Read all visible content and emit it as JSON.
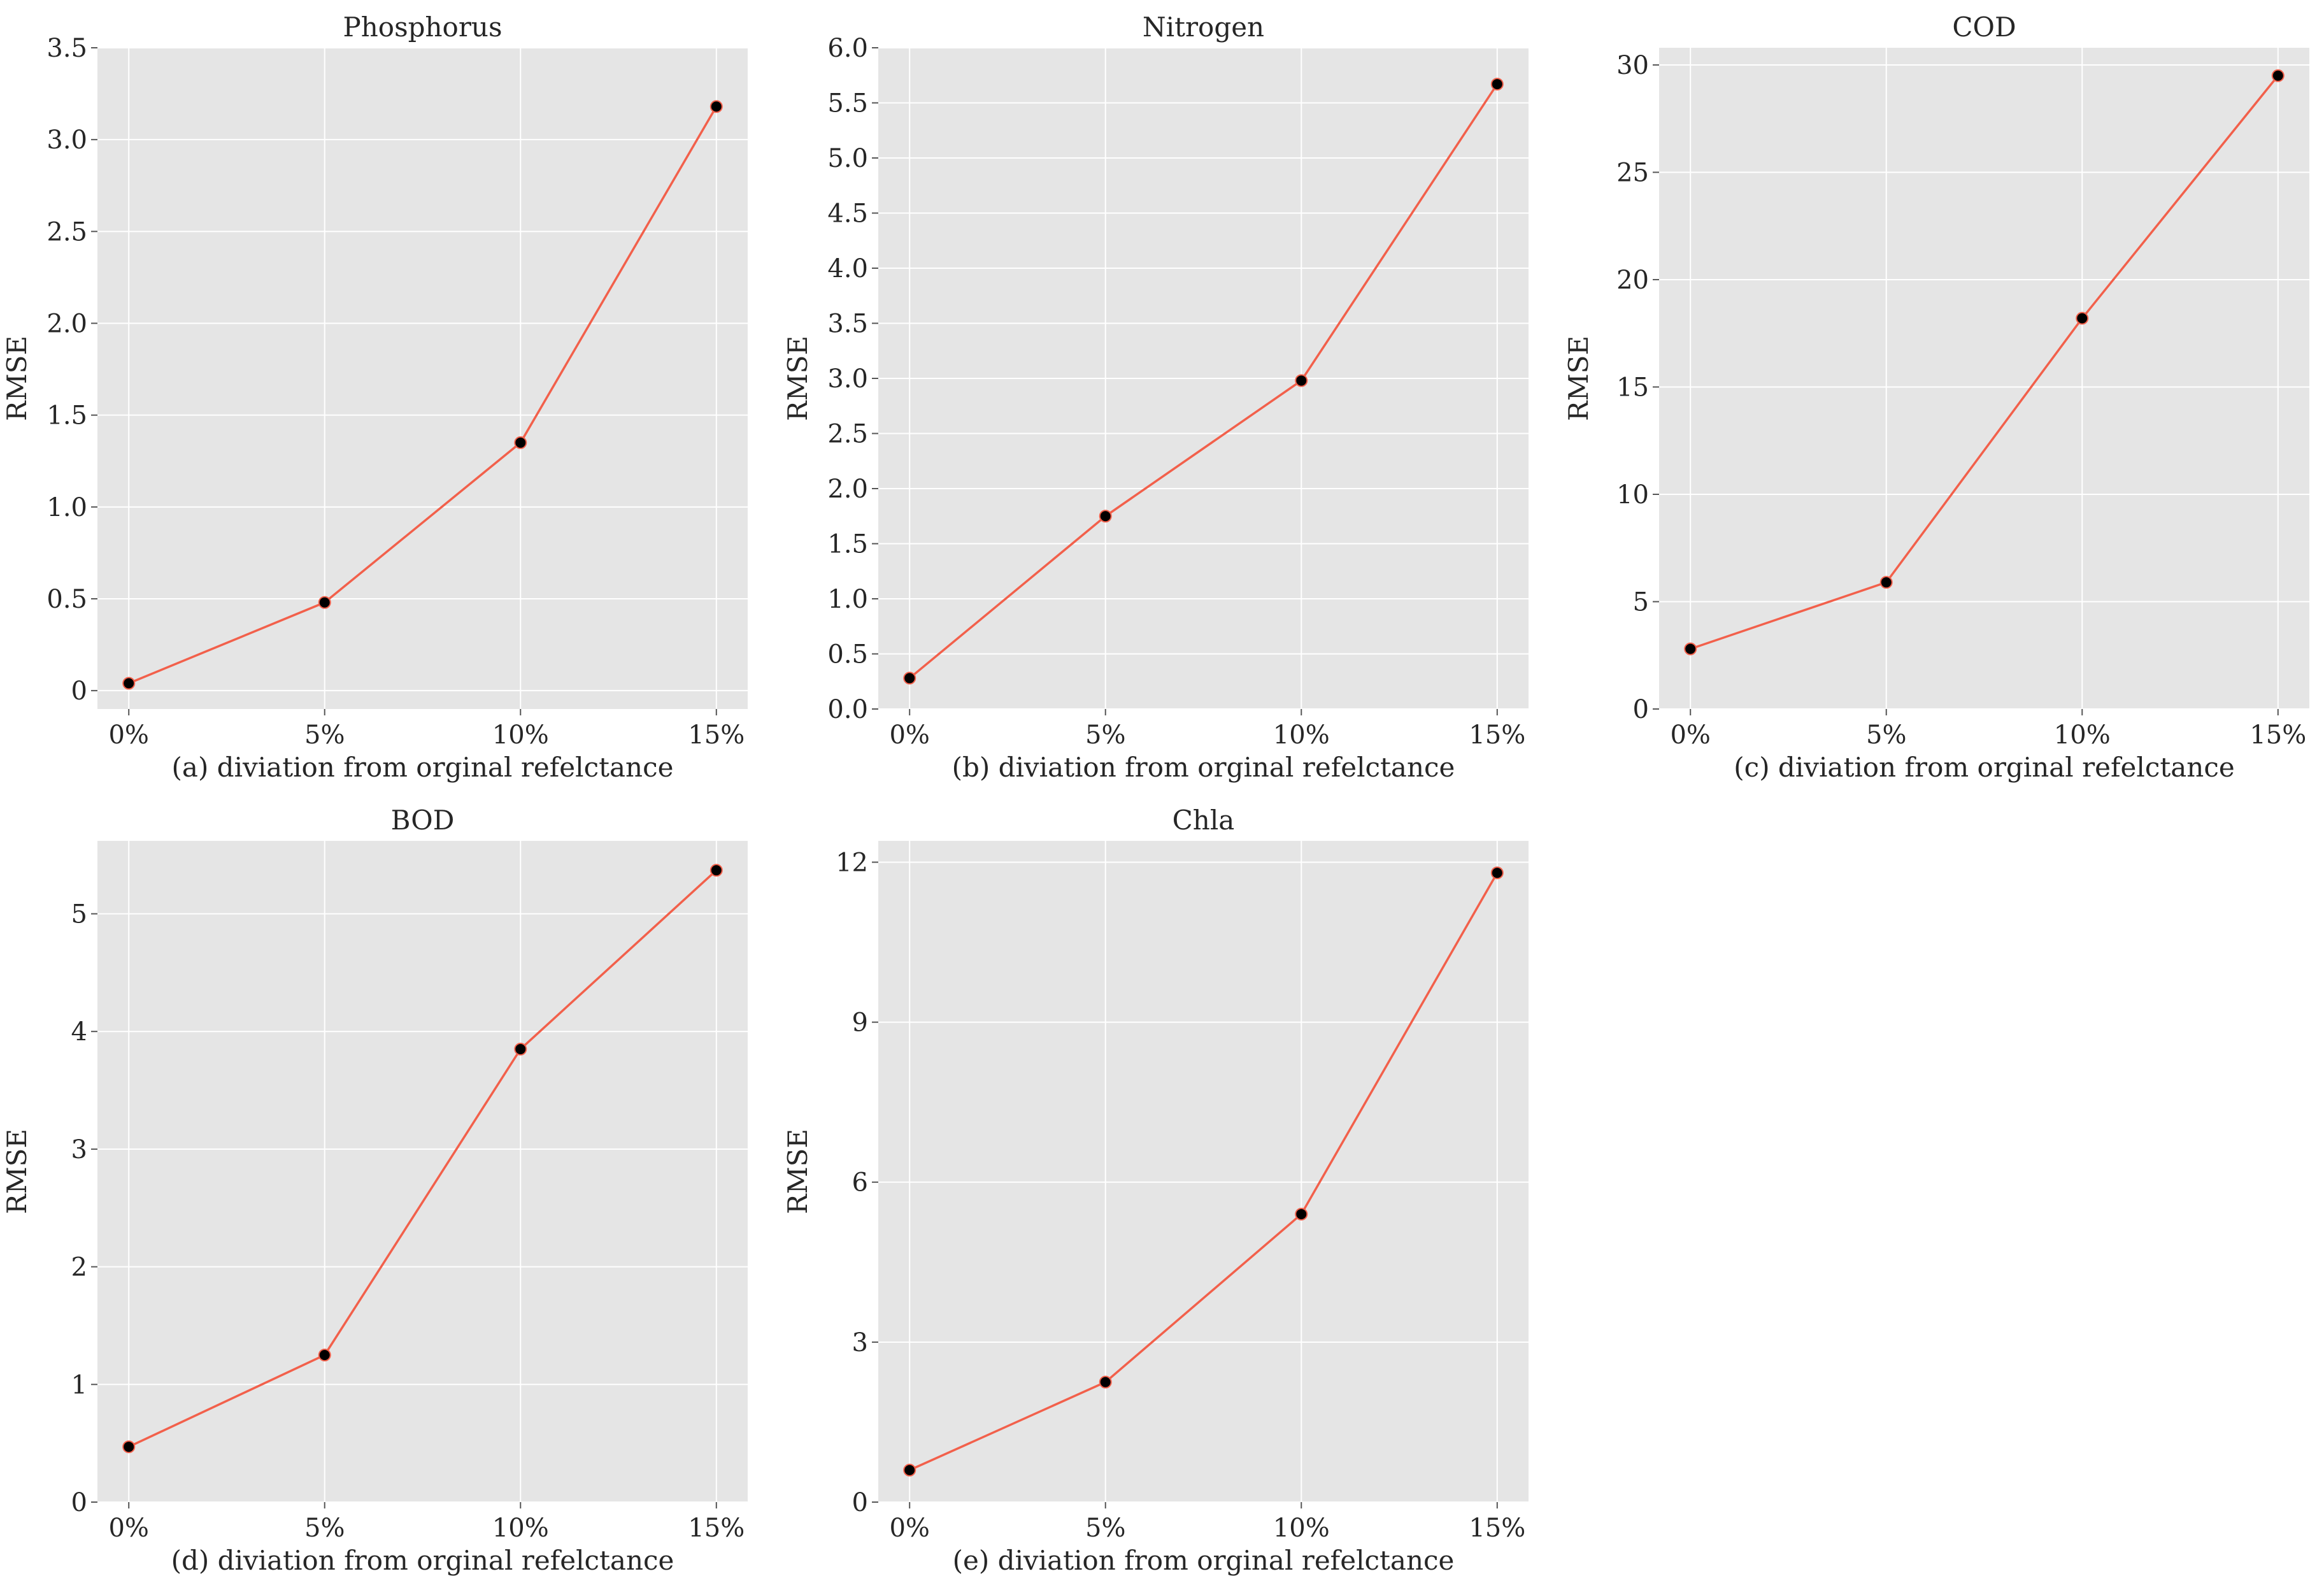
{
  "figure": {
    "colors": {
      "background": "#ffffff",
      "panel": "#e5e5e5",
      "grid": "#ffffff",
      "line": "#f2604b",
      "marker": "#000000",
      "text": "#262626"
    }
  },
  "chart_data": [
    {
      "type": "line",
      "title": "Phosphorus",
      "xlabel": "(a) diviation from orginal refelctance",
      "ylabel": "RMSE",
      "categories": [
        "0%",
        "5%",
        "10%",
        "15%"
      ],
      "x": [
        0,
        5,
        10,
        15
      ],
      "values": [
        0.04,
        0.48,
        1.35,
        3.18
      ],
      "xlim": [
        -0.8,
        15.8
      ],
      "ylim": [
        -0.1,
        3.5
      ],
      "yticks": [
        0,
        0.5,
        1.0,
        1.5,
        2.0,
        2.5,
        3.0,
        3.5
      ],
      "ytick_labels": [
        "0",
        "0.5",
        "1.0",
        "1.5",
        "2.0",
        "2.5",
        "3.0",
        "3.5"
      ],
      "grid": true
    },
    {
      "type": "line",
      "title": "Nitrogen",
      "xlabel": "(b) diviation from orginal refelctance",
      "ylabel": "RMSE",
      "categories": [
        "0%",
        "5%",
        "10%",
        "15%"
      ],
      "x": [
        0,
        5,
        10,
        15
      ],
      "values": [
        0.28,
        1.75,
        2.98,
        5.67
      ],
      "xlim": [
        -0.8,
        15.8
      ],
      "ylim": [
        0.0,
        6.0
      ],
      "yticks": [
        0.0,
        0.5,
        1.0,
        1.5,
        2.0,
        2.5,
        3.0,
        3.5,
        4.0,
        4.5,
        5.0,
        5.5,
        6.0
      ],
      "ytick_labels": [
        "0.0",
        "0.5",
        "1.0",
        "1.5",
        "2.0",
        "2.5",
        "3.0",
        "3.5",
        "4.0",
        "4.5",
        "5.0",
        "5.5",
        "6.0"
      ],
      "grid": true
    },
    {
      "type": "line",
      "title": "COD",
      "xlabel": "(c) diviation from orginal refelctance",
      "ylabel": "RMSE",
      "categories": [
        "0%",
        "5%",
        "10%",
        "15%"
      ],
      "x": [
        0,
        5,
        10,
        15
      ],
      "values": [
        2.8,
        5.9,
        18.2,
        29.5
      ],
      "xlim": [
        -0.8,
        15.8
      ],
      "ylim": [
        0,
        30.8
      ],
      "yticks": [
        0,
        5,
        10,
        15,
        20,
        25,
        30
      ],
      "ytick_labels": [
        "0",
        "5",
        "10",
        "15",
        "20",
        "25",
        "30"
      ],
      "grid": true
    },
    {
      "type": "line",
      "title": "BOD",
      "xlabel": "(d) diviation from orginal refelctance",
      "ylabel": "RMSE",
      "categories": [
        "0%",
        "5%",
        "10%",
        "15%"
      ],
      "x": [
        0,
        5,
        10,
        15
      ],
      "values": [
        0.47,
        1.25,
        3.85,
        5.37
      ],
      "xlim": [
        -0.8,
        15.8
      ],
      "ylim": [
        0,
        5.62
      ],
      "yticks": [
        0,
        1,
        2,
        3,
        4,
        5
      ],
      "ytick_labels": [
        "0",
        "1",
        "2",
        "3",
        "4",
        "5"
      ],
      "grid": true
    },
    {
      "type": "line",
      "title": "Chla",
      "xlabel": "(e) diviation from orginal refelctance",
      "ylabel": "RMSE",
      "categories": [
        "0%",
        "5%",
        "10%",
        "15%"
      ],
      "x": [
        0,
        5,
        10,
        15
      ],
      "values": [
        0.6,
        2.25,
        5.4,
        11.8
      ],
      "xlim": [
        -0.8,
        15.8
      ],
      "ylim": [
        0,
        12.4
      ],
      "yticks": [
        0,
        3,
        6,
        9,
        12
      ],
      "ytick_labels": [
        "0",
        "3",
        "6",
        "9",
        "12"
      ],
      "grid": true
    }
  ]
}
